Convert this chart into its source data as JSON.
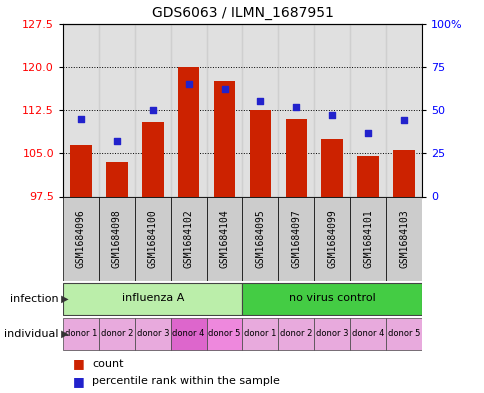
{
  "title": "GDS6063 / ILMN_1687951",
  "samples": [
    "GSM1684096",
    "GSM1684098",
    "GSM1684100",
    "GSM1684102",
    "GSM1684104",
    "GSM1684095",
    "GSM1684097",
    "GSM1684099",
    "GSM1684101",
    "GSM1684103"
  ],
  "bar_values": [
    106.5,
    103.5,
    110.5,
    120.0,
    117.5,
    112.5,
    111.0,
    107.5,
    104.5,
    105.5
  ],
  "percentile_values": [
    45,
    32,
    50,
    65,
    62,
    55,
    52,
    47,
    37,
    44
  ],
  "ylim_left": [
    97.5,
    127.5
  ],
  "yticks_left": [
    97.5,
    105.0,
    112.5,
    120.0,
    127.5
  ],
  "ylim_right": [
    0,
    100
  ],
  "yticks_right": [
    0,
    25,
    50,
    75,
    100
  ],
  "bar_color": "#cc2200",
  "dot_color": "#2222cc",
  "bar_base": 97.5,
  "infection_groups": [
    {
      "label": "influenza A",
      "start": 0,
      "end": 5,
      "color": "#bbeeaa"
    },
    {
      "label": "no virus control",
      "start": 5,
      "end": 10,
      "color": "#44cc44"
    }
  ],
  "individual_labels": [
    "donor 1",
    "donor 2",
    "donor 3",
    "donor 4",
    "donor 5",
    "donor 1",
    "donor 2",
    "donor 3",
    "donor 4",
    "donor 5"
  ],
  "individual_colors": [
    "#e8aadd",
    "#e8aadd",
    "#e8aadd",
    "#dd66cc",
    "#ee88dd",
    "#e8aadd",
    "#e8aadd",
    "#e8aadd",
    "#e8aadd",
    "#e8aadd"
  ],
  "col_bg_color": "#cccccc",
  "legend_count_color": "#cc2200",
  "legend_pct_color": "#2222cc"
}
